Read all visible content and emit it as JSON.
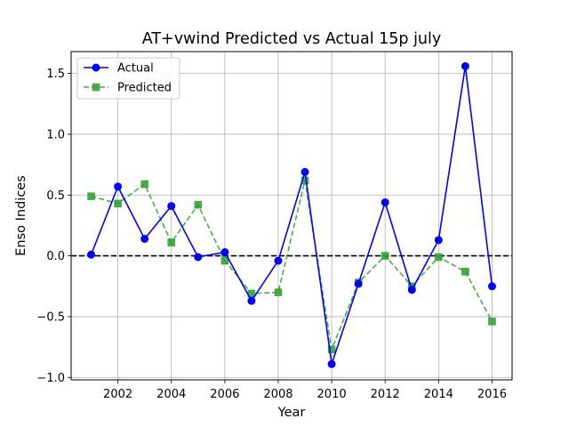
{
  "chart_data": {
    "type": "line",
    "title": "AT+vwind Predicted vs Actual 15p july",
    "xlabel": "Year",
    "ylabel": "Enso Indices",
    "xlim": [
      2000.25,
      2016.75
    ],
    "ylim": [
      -1.02,
      1.68
    ],
    "x_ticks": [
      2002,
      2004,
      2006,
      2008,
      2010,
      2012,
      2014,
      2016
    ],
    "y_ticks": [
      -1.0,
      -0.5,
      0.0,
      0.5,
      1.0,
      1.5
    ],
    "y_tick_labels": [
      "−1.0",
      "−0.5",
      "0.0",
      "0.5",
      "1.0",
      "1.5"
    ],
    "grid": true,
    "legend_position": "upper-left",
    "reference_line": {
      "y": 0.0,
      "style": "dashed",
      "color": "#000000"
    },
    "x": [
      2001,
      2002,
      2003,
      2004,
      2005,
      2006,
      2007,
      2008,
      2009,
      2010,
      2011,
      2012,
      2013,
      2014,
      2015,
      2016
    ],
    "series": [
      {
        "name": "Actual",
        "color": "#0000ff",
        "marker": "circle",
        "line_style": "solid",
        "values": [
          0.01,
          0.57,
          0.14,
          0.41,
          -0.01,
          0.03,
          -0.37,
          -0.04,
          0.69,
          -0.89,
          -0.23,
          0.44,
          -0.28,
          0.13,
          1.56,
          -0.25
        ]
      },
      {
        "name": "Predicted",
        "color": "#2ca02c",
        "marker": "square",
        "line_style": "dashed",
        "values": [
          0.49,
          0.43,
          0.59,
          0.11,
          0.42,
          -0.04,
          -0.31,
          -0.3,
          0.62,
          -0.77,
          -0.22,
          0.0,
          -0.25,
          -0.01,
          -0.13,
          -0.54
        ]
      }
    ]
  }
}
